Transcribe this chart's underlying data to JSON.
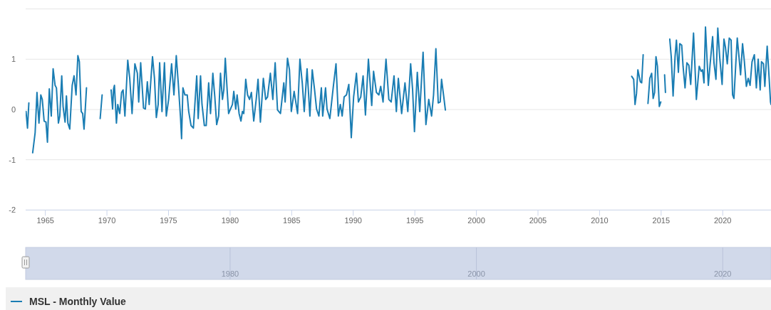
{
  "chart_data": {
    "type": "line",
    "xlim": [
      1963.4,
      2023.92
    ],
    "xticks": [
      1965,
      1970,
      1975,
      1980,
      1985,
      1990,
      1995,
      2000,
      2005,
      2010,
      2015,
      2020
    ],
    "ylim": [
      -2,
      2
    ],
    "yticks": [
      -2,
      -1,
      0,
      1,
      {
        "value": 2,
        "label": null
      }
    ],
    "x2lim": [
      1963.4,
      2023.92
    ],
    "x2ticks": [
      1980,
      2000,
      2020
    ],
    "grid": "y",
    "legend": "bottom",
    "marker": "none",
    "line_style": "solid",
    "series": [
      {
        "name": "MSL - Monthly Value",
        "color": "#1a7db3",
        "x": [
          1963.43,
          1963.55,
          1963.66,
          1963.8,
          1963.97,
          1964.17,
          1964.32,
          1964.48,
          1964.63,
          1964.75,
          1964.9,
          1965.05,
          1965.17,
          1965.32,
          1965.48,
          1965.63,
          1965.79,
          1965.9,
          1966.06,
          1966.17,
          1966.33,
          1966.44,
          1966.6,
          1966.71,
          1966.83,
          1966.98,
          1967.18,
          1967.33,
          1967.49,
          1967.64,
          1967.76,
          1967.91,
          1968.03,
          1968.14,
          1968.22,
          1968.34,
          1968.9,
          1969.45,
          1969.61,
          1970.0,
          1970.34,
          1970.46,
          1970.54,
          1970.61,
          1970.77,
          1970.88,
          1971.04,
          1971.19,
          1971.31,
          1971.46,
          1971.69,
          1971.85,
          1972.04,
          1972.27,
          1972.47,
          1972.58,
          1972.74,
          1972.97,
          1973.12,
          1973.28,
          1973.43,
          1973.7,
          1973.86,
          1974.01,
          1974.16,
          1974.28,
          1974.47,
          1974.67,
          1974.82,
          1975.01,
          1975.25,
          1975.44,
          1975.63,
          1975.79,
          1975.98,
          1976.06,
          1976.17,
          1976.33,
          1976.52,
          1976.64,
          1976.83,
          1977.02,
          1977.14,
          1977.29,
          1977.41,
          1977.6,
          1977.72,
          1977.91,
          1978.06,
          1978.26,
          1978.41,
          1978.6,
          1978.76,
          1978.91,
          1979.07,
          1979.22,
          1979.38,
          1979.49,
          1979.61,
          1979.76,
          1979.88,
          1980.03,
          1980.19,
          1980.3,
          1980.46,
          1980.57,
          1980.73,
          1980.88,
          1981.0,
          1981.11,
          1981.27,
          1981.42,
          1981.58,
          1981.73,
          1981.92,
          1982.12,
          1982.27,
          1982.46,
          1982.7,
          1982.89,
          1983.04,
          1983.27,
          1983.47,
          1983.66,
          1983.85,
          1984.09,
          1984.36,
          1984.47,
          1984.66,
          1984.82,
          1984.97,
          1985.2,
          1985.48,
          1985.67,
          1985.86,
          1986.02,
          1986.25,
          1986.48,
          1986.67,
          1986.86,
          1987.02,
          1987.21,
          1987.41,
          1987.52,
          1987.75,
          1987.87,
          1988.1,
          1988.37,
          1988.6,
          1988.79,
          1988.95,
          1989.1,
          1989.26,
          1989.45,
          1989.64,
          1989.84,
          1990.03,
          1990.26,
          1990.42,
          1990.61,
          1990.8,
          1990.99,
          1991.23,
          1991.5,
          1991.65,
          1991.88,
          1992.08,
          1992.23,
          1992.42,
          1992.66,
          1992.89,
          1993.08,
          1993.31,
          1993.5,
          1993.66,
          1993.93,
          1994.2,
          1994.43,
          1994.66,
          1994.82,
          1994.97,
          1995.2,
          1995.4,
          1995.67,
          1995.9,
          1996.13,
          1996.36,
          1996.52,
          1996.71,
          1996.9,
          1997.06,
          1997.17,
          1997.33,
          1997.48,
          2005.0,
          2012.61,
          2012.77,
          2012.88,
          2013.0,
          2013.11,
          2013.31,
          2013.42,
          2013.54,
          2013.75,
          2013.93,
          2014.08,
          2014.23,
          2014.35,
          2014.47,
          2014.58,
          2014.7,
          2014.85,
          2014.97,
          2015.1,
          2015.28,
          2015.35,
          2015.5,
          2015.7,
          2015.82,
          2015.97,
          2016.13,
          2016.24,
          2016.4,
          2016.51,
          2016.67,
          2016.78,
          2016.94,
          2017.09,
          2017.25,
          2017.4,
          2017.63,
          2017.86,
          2018.09,
          2018.25,
          2018.36,
          2018.48,
          2018.6,
          2018.83,
          2018.98,
          2019.18,
          2019.29,
          2019.45,
          2019.6,
          2019.75,
          2019.95,
          2020.1,
          2020.22,
          2020.37,
          2020.53,
          2020.68,
          2020.8,
          2020.91,
          2021.07,
          2021.18,
          2021.34,
          2021.45,
          2021.61,
          2021.76,
          2021.92,
          2022.07,
          2022.22,
          2022.38,
          2022.57,
          2022.73,
          2022.88,
          2023.04,
          2023.15,
          2023.31,
          2023.42,
          2023.61,
          2023.77,
          2023.88,
          2023.92
        ],
        "values": [
          -0.04,
          -0.37,
          0.13,
          null,
          -0.86,
          -0.46,
          0.34,
          -0.27,
          0.29,
          0.2,
          -0.23,
          -0.25,
          -0.65,
          0.41,
          -0.13,
          0.81,
          0.48,
          0.43,
          -0.27,
          -0.13,
          0.67,
          0.06,
          -0.25,
          0.27,
          -0.27,
          -0.39,
          0.48,
          0.67,
          0.29,
          1.07,
          0.95,
          -0.04,
          -0.08,
          -0.39,
          -0.08,
          0.43,
          null,
          -0.18,
          0.29,
          null,
          0.39,
          0.01,
          0.41,
          0.48,
          -0.27,
          0.1,
          -0.08,
          0.34,
          0.39,
          -0.13,
          0.98,
          0.62,
          -0.08,
          0.91,
          0.72,
          0.15,
          0.93,
          0.03,
          0.01,
          0.55,
          0.1,
          1.05,
          0.62,
          -0.16,
          0.1,
          0.93,
          -0.04,
          0.93,
          -0.13,
          0.2,
          0.91,
          0.29,
          1.07,
          0.53,
          -0.18,
          -0.58,
          0.43,
          0.29,
          0.29,
          -0.04,
          -0.32,
          -0.37,
          0.1,
          0.67,
          -0.18,
          0.67,
          0.1,
          -0.32,
          -0.32,
          0.53,
          -0.08,
          0.72,
          0.25,
          -0.3,
          -0.13,
          0.72,
          0.2,
          0.39,
          1.02,
          0.39,
          -0.08,
          0.01,
          0.1,
          0.36,
          0.01,
          0.29,
          -0.08,
          -0.23,
          -0.04,
          -0.08,
          0.6,
          0.29,
          0.2,
          0.34,
          -0.23,
          0.2,
          0.6,
          -0.25,
          0.62,
          0.2,
          0.25,
          0.72,
          0.2,
          0.93,
          -0.01,
          -0.08,
          0.53,
          0.15,
          1.02,
          0.79,
          -0.04,
          0.36,
          -0.08,
          1.0,
          0.53,
          -0.04,
          0.81,
          -0.13,
          0.79,
          0.39,
          0.01,
          -0.13,
          0.43,
          -0.13,
          0.43,
          0.01,
          -0.18,
          0.43,
          0.91,
          -0.13,
          0.1,
          -0.13,
          0.25,
          0.29,
          0.5,
          -0.56,
          0.25,
          0.72,
          0.15,
          0.25,
          0.67,
          -0.11,
          1.0,
          0.08,
          0.76,
          0.34,
          0.29,
          0.46,
          0.15,
          1.0,
          0.2,
          0.15,
          0.67,
          -0.04,
          0.62,
          -0.08,
          0.53,
          -0.04,
          0.91,
          0.39,
          -0.44,
          0.74,
          -0.04,
          1.14,
          -0.3,
          0.2,
          -0.13,
          0.29,
          1.21,
          0.13,
          0.15,
          0.6,
          0.29,
          -0.01,
          null,
          0.66,
          0.6,
          0.1,
          0.32,
          0.79,
          0.55,
          0.53,
          1.09,
          null,
          0.12,
          0.62,
          0.72,
          0.22,
          0.34,
          1.05,
          0.86,
          0.06,
          0.15,
          null,
          0.69,
          0.34,
          null,
          1.4,
          1.05,
          0.27,
          1.05,
          1.38,
          0.74,
          1.31,
          1.28,
          0.86,
          0.43,
          0.93,
          0.88,
          0.5,
          1.52,
          0.2,
          0.86,
          0.76,
          0.79,
          0.53,
          1.64,
          0.48,
          0.91,
          1.45,
          0.93,
          0.6,
          1.62,
          1.05,
          0.5,
          1.4,
          1.24,
          0.91,
          1.42,
          1.38,
          0.29,
          0.22,
          0.95,
          1.42,
          1.0,
          0.69,
          1.31,
          0.95,
          0.46,
          0.62,
          0.48,
          0.95,
          1.09,
          0.43,
          1.0,
          0.39,
          0.95,
          0.91,
          0.46,
          1.26,
          0.62,
          0.15,
          0.1
        ]
      }
    ]
  }
}
